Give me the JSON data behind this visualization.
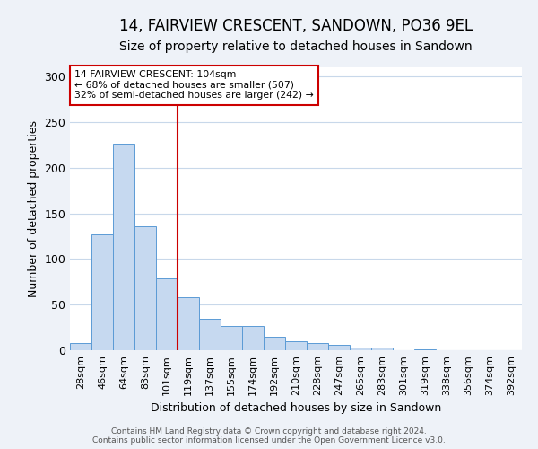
{
  "title": "14, FAIRVIEW CRESCENT, SANDOWN, PO36 9EL",
  "subtitle": "Size of property relative to detached houses in Sandown",
  "xlabel": "Distribution of detached houses by size in Sandown",
  "ylabel": "Number of detached properties",
  "categories": [
    "28sqm",
    "46sqm",
    "64sqm",
    "83sqm",
    "101sqm",
    "119sqm",
    "137sqm",
    "155sqm",
    "174sqm",
    "192sqm",
    "210sqm",
    "228sqm",
    "247sqm",
    "265sqm",
    "283sqm",
    "301sqm",
    "319sqm",
    "338sqm",
    "356sqm",
    "374sqm",
    "392sqm"
  ],
  "values": [
    8,
    127,
    226,
    136,
    79,
    58,
    34,
    27,
    27,
    15,
    10,
    8,
    6,
    3,
    3,
    0,
    1,
    0,
    0,
    0,
    0
  ],
  "bar_color": "#c6d9f0",
  "bar_edge_color": "#5b9bd5",
  "vline_index": 4.5,
  "vline_color": "#cc0000",
  "annotation_text": "14 FAIRVIEW CRESCENT: 104sqm\n← 68% of detached houses are smaller (507)\n32% of semi-detached houses are larger (242) →",
  "annotation_box_color": "white",
  "annotation_box_edge_color": "#cc0000",
  "ylim": [
    0,
    310
  ],
  "yticks": [
    0,
    50,
    100,
    150,
    200,
    250,
    300
  ],
  "footer_line1": "Contains HM Land Registry data © Crown copyright and database right 2024.",
  "footer_line2": "Contains public sector information licensed under the Open Government Licence v3.0.",
  "background_color": "#eef2f8",
  "plot_background_color": "white",
  "grid_color": "#c8d8ea",
  "title_fontsize": 12,
  "subtitle_fontsize": 10,
  "tick_fontsize": 8,
  "ylabel_fontsize": 9,
  "xlabel_fontsize": 9,
  "footer_fontsize": 6.5
}
